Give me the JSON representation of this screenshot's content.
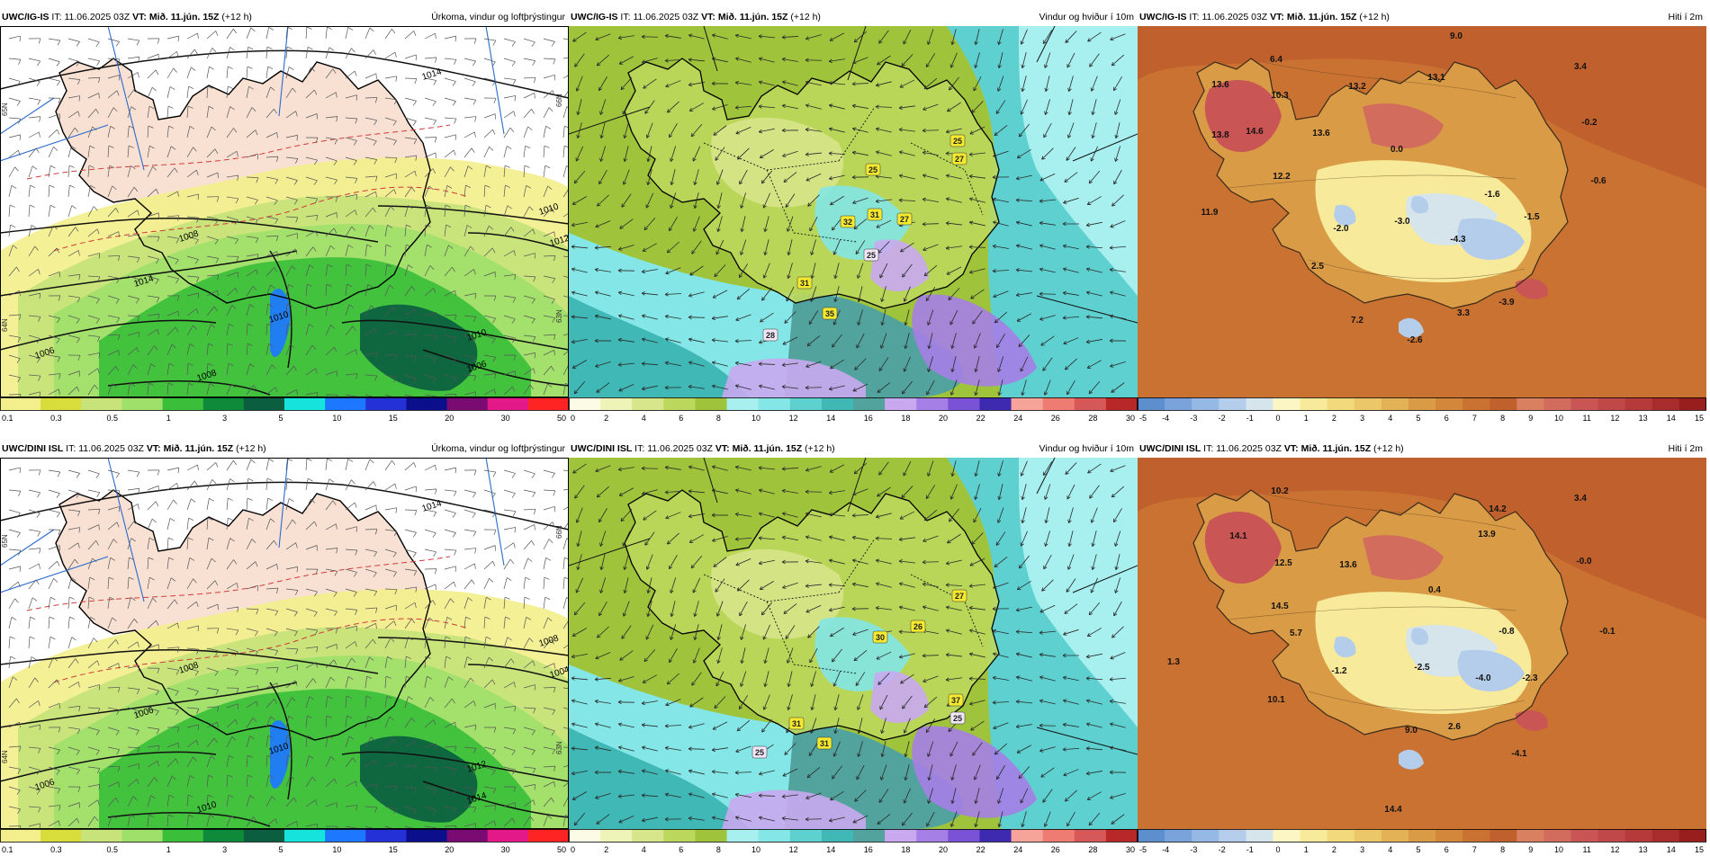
{
  "panels": [
    {
      "model": "UWC/IG-IS",
      "it_label": "IT:",
      "it": "11.06.2025 03Z",
      "vt_label": "VT:",
      "vt": "Mið. 11.jún. 15Z",
      "lead": "(+12 h)",
      "title": "Úrkoma, vindur og loftþrýstingur",
      "type": "precip",
      "colorbar": {
        "labels": [
          "0.1",
          "0.3",
          "0.5",
          "1",
          "3",
          "5",
          "10",
          "15",
          "20",
          "30",
          "50"
        ],
        "colors": [
          "#f2ef8c",
          "#d9dd3c",
          "#c7e37a",
          "#9fe06a",
          "#3bbf3b",
          "#0e8a3a",
          "#0b5f40",
          "#16e3dc",
          "#1e78ff",
          "#2431d6",
          "#0c0f8c",
          "#7a0b73",
          "#e3198a",
          "#ff2424"
        ]
      },
      "isobars": [
        "1014",
        "1008",
        "1006",
        "1010",
        "1010",
        "1014",
        "1010",
        "1012",
        "1006",
        "1008"
      ],
      "lat_labels": [
        "65N",
        "64N",
        "66N",
        "63N"
      ]
    },
    {
      "model": "UWC/IG-IS",
      "it_label": "IT:",
      "it": "11.06.2025 03Z",
      "vt_label": "VT:",
      "vt": "Mið. 11.jún. 15Z",
      "lead": "(+12 h)",
      "title": "Vindur og hviður í 10m",
      "type": "wind",
      "colorbar": {
        "labels": [
          "0",
          "2",
          "4",
          "6",
          "8",
          "10",
          "12",
          "14",
          "16",
          "18",
          "20",
          "22",
          "24",
          "26",
          "28",
          "30"
        ],
        "colors": [
          "#fbfbe6",
          "#eef3b8",
          "#d7e68a",
          "#bcd85c",
          "#9fc43c",
          "#a8f0f0",
          "#84e6e6",
          "#5fd0d0",
          "#3fb8b6",
          "#52a39e",
          "#c9a8f0",
          "#a57ee6",
          "#7a52d6",
          "#3e2ab0",
          "#f6a39a",
          "#ee7c72",
          "#d65858",
          "#b82828"
        ]
      },
      "gusts": [
        {
          "label": "25",
          "kind": "y"
        },
        {
          "label": "27",
          "kind": "y"
        },
        {
          "label": "25",
          "kind": "y"
        },
        {
          "label": "32",
          "kind": "y"
        },
        {
          "label": "31",
          "kind": "y"
        },
        {
          "label": "27",
          "kind": "y"
        },
        {
          "label": "25",
          "kind": "p"
        },
        {
          "label": "31",
          "kind": "y"
        },
        {
          "label": "35",
          "kind": "y"
        },
        {
          "label": "28",
          "kind": "p"
        }
      ]
    },
    {
      "model": "UWC/IG-IS",
      "it_label": "IT:",
      "it": "11.06.2025 03Z",
      "vt_label": "VT:",
      "vt": "Mið. 11.jún. 15Z",
      "lead": "(+12 h)",
      "title": "Hiti í 2m",
      "type": "temp",
      "colorbar": {
        "labels": [
          "-5",
          "-4",
          "-3",
          "-2",
          "-1",
          "0",
          "1",
          "2",
          "3",
          "4",
          "5",
          "6",
          "7",
          "8",
          "9",
          "10",
          "11",
          "12",
          "13",
          "14",
          "15"
        ],
        "colors": [
          "#5d8fce",
          "#79a3da",
          "#95b8e4",
          "#b4cdea",
          "#d6e4ec",
          "#fbf6c4",
          "#f7ea9a",
          "#f2da7c",
          "#ecc76a",
          "#e3b257",
          "#d99b45",
          "#d2873a",
          "#c97232",
          "#c0612d",
          "#d88060",
          "#d26c5c",
          "#c95555",
          "#c04848",
          "#b63a3a",
          "#a82c2c",
          "#981e1e"
        ]
      },
      "temps": [
        "9.0",
        "6.4",
        "13.6",
        "10.3",
        "13.2",
        "13.1",
        "3.4",
        "13.8",
        "14.6",
        "13.6",
        "0.0",
        "-0.2",
        "12.2",
        "-1.6",
        "-0.6",
        "11.9",
        "-2.0",
        "-3.0",
        "-4.3",
        "-1.5",
        "2.5",
        "3.3",
        "-3.9",
        "7.2",
        "-2.6"
      ]
    },
    {
      "model": "UWC/DINI ISL",
      "it_label": "IT:",
      "it": "11.06.2025 03Z",
      "vt_label": "VT:",
      "vt": "Mið. 11.jún. 15Z",
      "lead": "(+12 h)",
      "title": "Úrkoma, vindur og loftþrýstingur",
      "type": "precip",
      "colorbar": {
        "labels": [
          "0.1",
          "0.3",
          "0.5",
          "1",
          "3",
          "5",
          "10",
          "15",
          "20",
          "30",
          "50"
        ],
        "colors": [
          "#f2ef8c",
          "#d9dd3c",
          "#c7e37a",
          "#9fe06a",
          "#3bbf3b",
          "#0e8a3a",
          "#0b5f40",
          "#16e3dc",
          "#1e78ff",
          "#2431d6",
          "#0c0f8c",
          "#7a0b73",
          "#e3198a",
          "#ff2424"
        ]
      },
      "isobars": [
        "1014",
        "1008",
        "1006",
        "1010",
        "1012",
        "1006",
        "1008",
        "1004",
        "1014",
        "1010"
      ],
      "lat_labels": [
        "65N",
        "64N",
        "66N",
        "63N"
      ]
    },
    {
      "model": "UWC/DINI ISL",
      "it_label": "IT:",
      "it": "11.06.2025 03Z",
      "vt_label": "VT:",
      "vt": "Mið. 11.jún. 15Z",
      "lead": "(+12 h)",
      "title": "Vindur og hviður í 10m",
      "type": "wind",
      "colorbar": {
        "labels": [
          "0",
          "2",
          "4",
          "6",
          "8",
          "10",
          "12",
          "14",
          "16",
          "18",
          "20",
          "22",
          "24",
          "26",
          "28",
          "30"
        ],
        "colors": [
          "#fbfbe6",
          "#eef3b8",
          "#d7e68a",
          "#bcd85c",
          "#9fc43c",
          "#a8f0f0",
          "#84e6e6",
          "#5fd0d0",
          "#3fb8b6",
          "#52a39e",
          "#c9a8f0",
          "#a57ee6",
          "#7a52d6",
          "#3e2ab0",
          "#f6a39a",
          "#ee7c72",
          "#d65858",
          "#b82828"
        ]
      },
      "gusts": [
        {
          "label": "27",
          "kind": "y"
        },
        {
          "label": "30",
          "kind": "y"
        },
        {
          "label": "26",
          "kind": "y"
        },
        {
          "label": "37",
          "kind": "y"
        },
        {
          "label": "25",
          "kind": "p"
        },
        {
          "label": "31",
          "kind": "y"
        },
        {
          "label": "31",
          "kind": "y"
        },
        {
          "label": "25",
          "kind": "p"
        }
      ]
    },
    {
      "model": "UWC/DINI ISL",
      "it_label": "IT:",
      "it": "11.06.2025 03Z",
      "vt_label": "VT:",
      "vt": "Mið. 11.jún. 15Z",
      "lead": "(+12 h)",
      "title": "Hiti í 2m",
      "type": "temp",
      "colorbar": {
        "labels": [
          "-5",
          "-4",
          "-3",
          "-2",
          "-1",
          "0",
          "1",
          "2",
          "3",
          "4",
          "5",
          "6",
          "7",
          "8",
          "9",
          "10",
          "11",
          "12",
          "13",
          "14",
          "15"
        ],
        "colors": [
          "#5d8fce",
          "#79a3da",
          "#95b8e4",
          "#b4cdea",
          "#d6e4ec",
          "#fbf6c4",
          "#f7ea9a",
          "#f2da7c",
          "#ecc76a",
          "#e3b257",
          "#d99b45",
          "#d2873a",
          "#c97232",
          "#c0612d",
          "#d88060",
          "#d26c5c",
          "#c95555",
          "#c04848",
          "#b63a3a",
          "#a82c2c",
          "#981e1e"
        ]
      },
      "temps": [
        "10.2",
        "3.4",
        "14.2",
        "14.1",
        "13.9",
        "12.5",
        "13.6",
        "-0.0",
        "0.4",
        "14.5",
        "5.7",
        "-0.8",
        "-0.1",
        "1.3",
        "-1.2",
        "-2.5",
        "-4.0",
        "-2.3",
        "10.1",
        "9.0",
        "2.6",
        "-4.1",
        "14.4"
      ]
    }
  ]
}
